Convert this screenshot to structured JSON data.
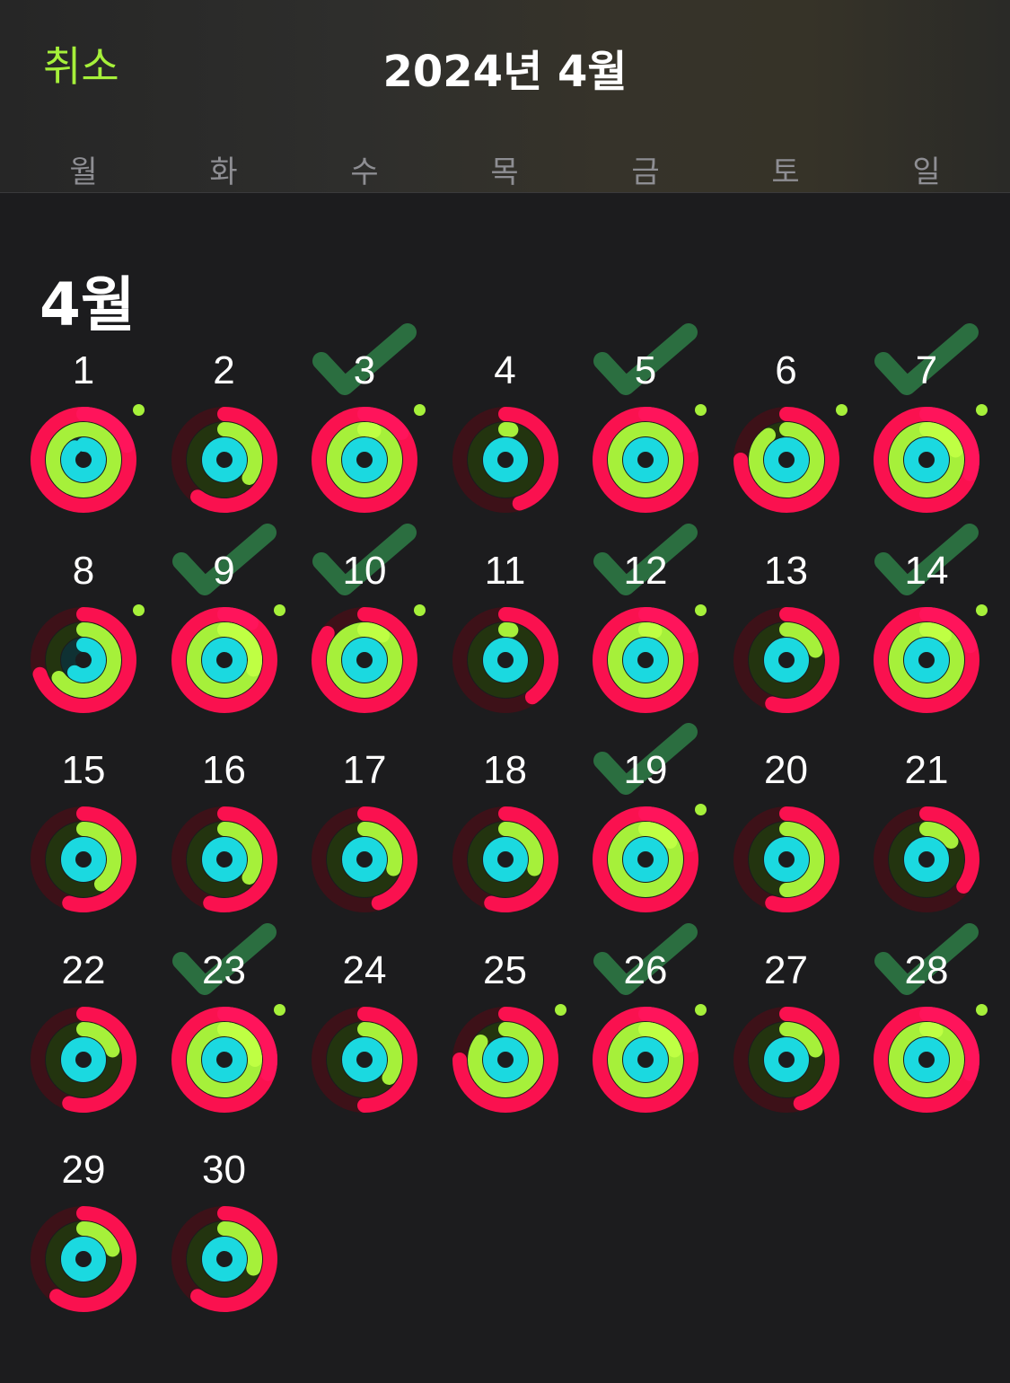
{
  "header": {
    "cancel_label": "취소",
    "title": "2024년 4월"
  },
  "weekdays": [
    "월",
    "화",
    "수",
    "목",
    "금",
    "토",
    "일"
  ],
  "month": {
    "label": "4월"
  },
  "colors": {
    "accent": "#a6f03a",
    "move": "#fa114f",
    "exercise": "#a6f03a",
    "stand": "#1bd9e0",
    "check": "#2e7d46"
  },
  "days": [
    {
      "day": "1",
      "move": 1.2,
      "exercise": 1.0,
      "stand": 0.9,
      "check": false,
      "goal_dot": true
    },
    {
      "day": "2",
      "move": 0.6,
      "exercise": 0.35,
      "stand": 1.0,
      "check": false,
      "goal_dot": false
    },
    {
      "day": "3",
      "move": 1.15,
      "exercise": 1.05,
      "stand": 1.0,
      "check": true,
      "goal_dot": true
    },
    {
      "day": "4",
      "move": 0.45,
      "exercise": 0.03,
      "stand": 1.0,
      "check": false,
      "goal_dot": false
    },
    {
      "day": "5",
      "move": 1.2,
      "exercise": 1.0,
      "stand": 1.0,
      "check": true,
      "goal_dot": true
    },
    {
      "day": "6",
      "move": 0.75,
      "exercise": 0.9,
      "stand": 1.0,
      "check": false,
      "goal_dot": true
    },
    {
      "day": "7",
      "move": 1.3,
      "exercise": 1.2,
      "stand": 1.0,
      "check": true,
      "goal_dot": true
    },
    {
      "day": "8",
      "move": 0.7,
      "exercise": 0.65,
      "stand": 0.6,
      "check": false,
      "goal_dot": true
    },
    {
      "day": "9",
      "move": 1.1,
      "exercise": 1.3,
      "stand": 1.0,
      "check": true,
      "goal_dot": true
    },
    {
      "day": "10",
      "move": 0.85,
      "exercise": 1.1,
      "stand": 1.0,
      "check": true,
      "goal_dot": true
    },
    {
      "day": "11",
      "move": 0.4,
      "exercise": 0.03,
      "stand": 1.0,
      "check": false,
      "goal_dot": false
    },
    {
      "day": "12",
      "move": 1.2,
      "exercise": 1.05,
      "stand": 1.0,
      "check": true,
      "goal_dot": true
    },
    {
      "day": "13",
      "move": 0.55,
      "exercise": 0.2,
      "stand": 1.0,
      "check": false,
      "goal_dot": false
    },
    {
      "day": "14",
      "move": 1.2,
      "exercise": 1.1,
      "stand": 1.0,
      "check": true,
      "goal_dot": true
    },
    {
      "day": "15",
      "move": 0.55,
      "exercise": 0.4,
      "stand": 1.0,
      "check": false,
      "goal_dot": false
    },
    {
      "day": "16",
      "move": 0.55,
      "exercise": 0.35,
      "stand": 1.0,
      "check": false,
      "goal_dot": false
    },
    {
      "day": "17",
      "move": 0.45,
      "exercise": 0.3,
      "stand": 1.0,
      "check": false,
      "goal_dot": false
    },
    {
      "day": "18",
      "move": 0.55,
      "exercise": 0.3,
      "stand": 1.0,
      "check": false,
      "goal_dot": false
    },
    {
      "day": "19",
      "move": 1.2,
      "exercise": 1.15,
      "stand": 1.0,
      "check": true,
      "goal_dot": true
    },
    {
      "day": "20",
      "move": 0.55,
      "exercise": 0.5,
      "stand": 1.0,
      "check": false,
      "goal_dot": false
    },
    {
      "day": "21",
      "move": 0.35,
      "exercise": 0.15,
      "stand": 1.0,
      "check": false,
      "goal_dot": false
    },
    {
      "day": "22",
      "move": 0.55,
      "exercise": 0.2,
      "stand": 1.0,
      "check": false,
      "goal_dot": false
    },
    {
      "day": "23",
      "move": 1.3,
      "exercise": 1.25,
      "stand": 1.0,
      "check": true,
      "goal_dot": true
    },
    {
      "day": "24",
      "move": 0.5,
      "exercise": 0.35,
      "stand": 1.0,
      "check": false,
      "goal_dot": false
    },
    {
      "day": "25",
      "move": 0.75,
      "exercise": 0.85,
      "stand": 1.0,
      "check": false,
      "goal_dot": true
    },
    {
      "day": "26",
      "move": 1.2,
      "exercise": 1.2,
      "stand": 1.0,
      "check": true,
      "goal_dot": true
    },
    {
      "day": "27",
      "move": 0.45,
      "exercise": 0.2,
      "stand": 1.0,
      "check": false,
      "goal_dot": false
    },
    {
      "day": "28",
      "move": 1.3,
      "exercise": 1.05,
      "stand": 1.0,
      "check": true,
      "goal_dot": true
    },
    {
      "day": "29",
      "move": 0.6,
      "exercise": 0.2,
      "stand": 1.0,
      "check": false,
      "goal_dot": false
    },
    {
      "day": "30",
      "move": 0.6,
      "exercise": 0.3,
      "stand": 1.0,
      "check": false,
      "goal_dot": false
    }
  ]
}
